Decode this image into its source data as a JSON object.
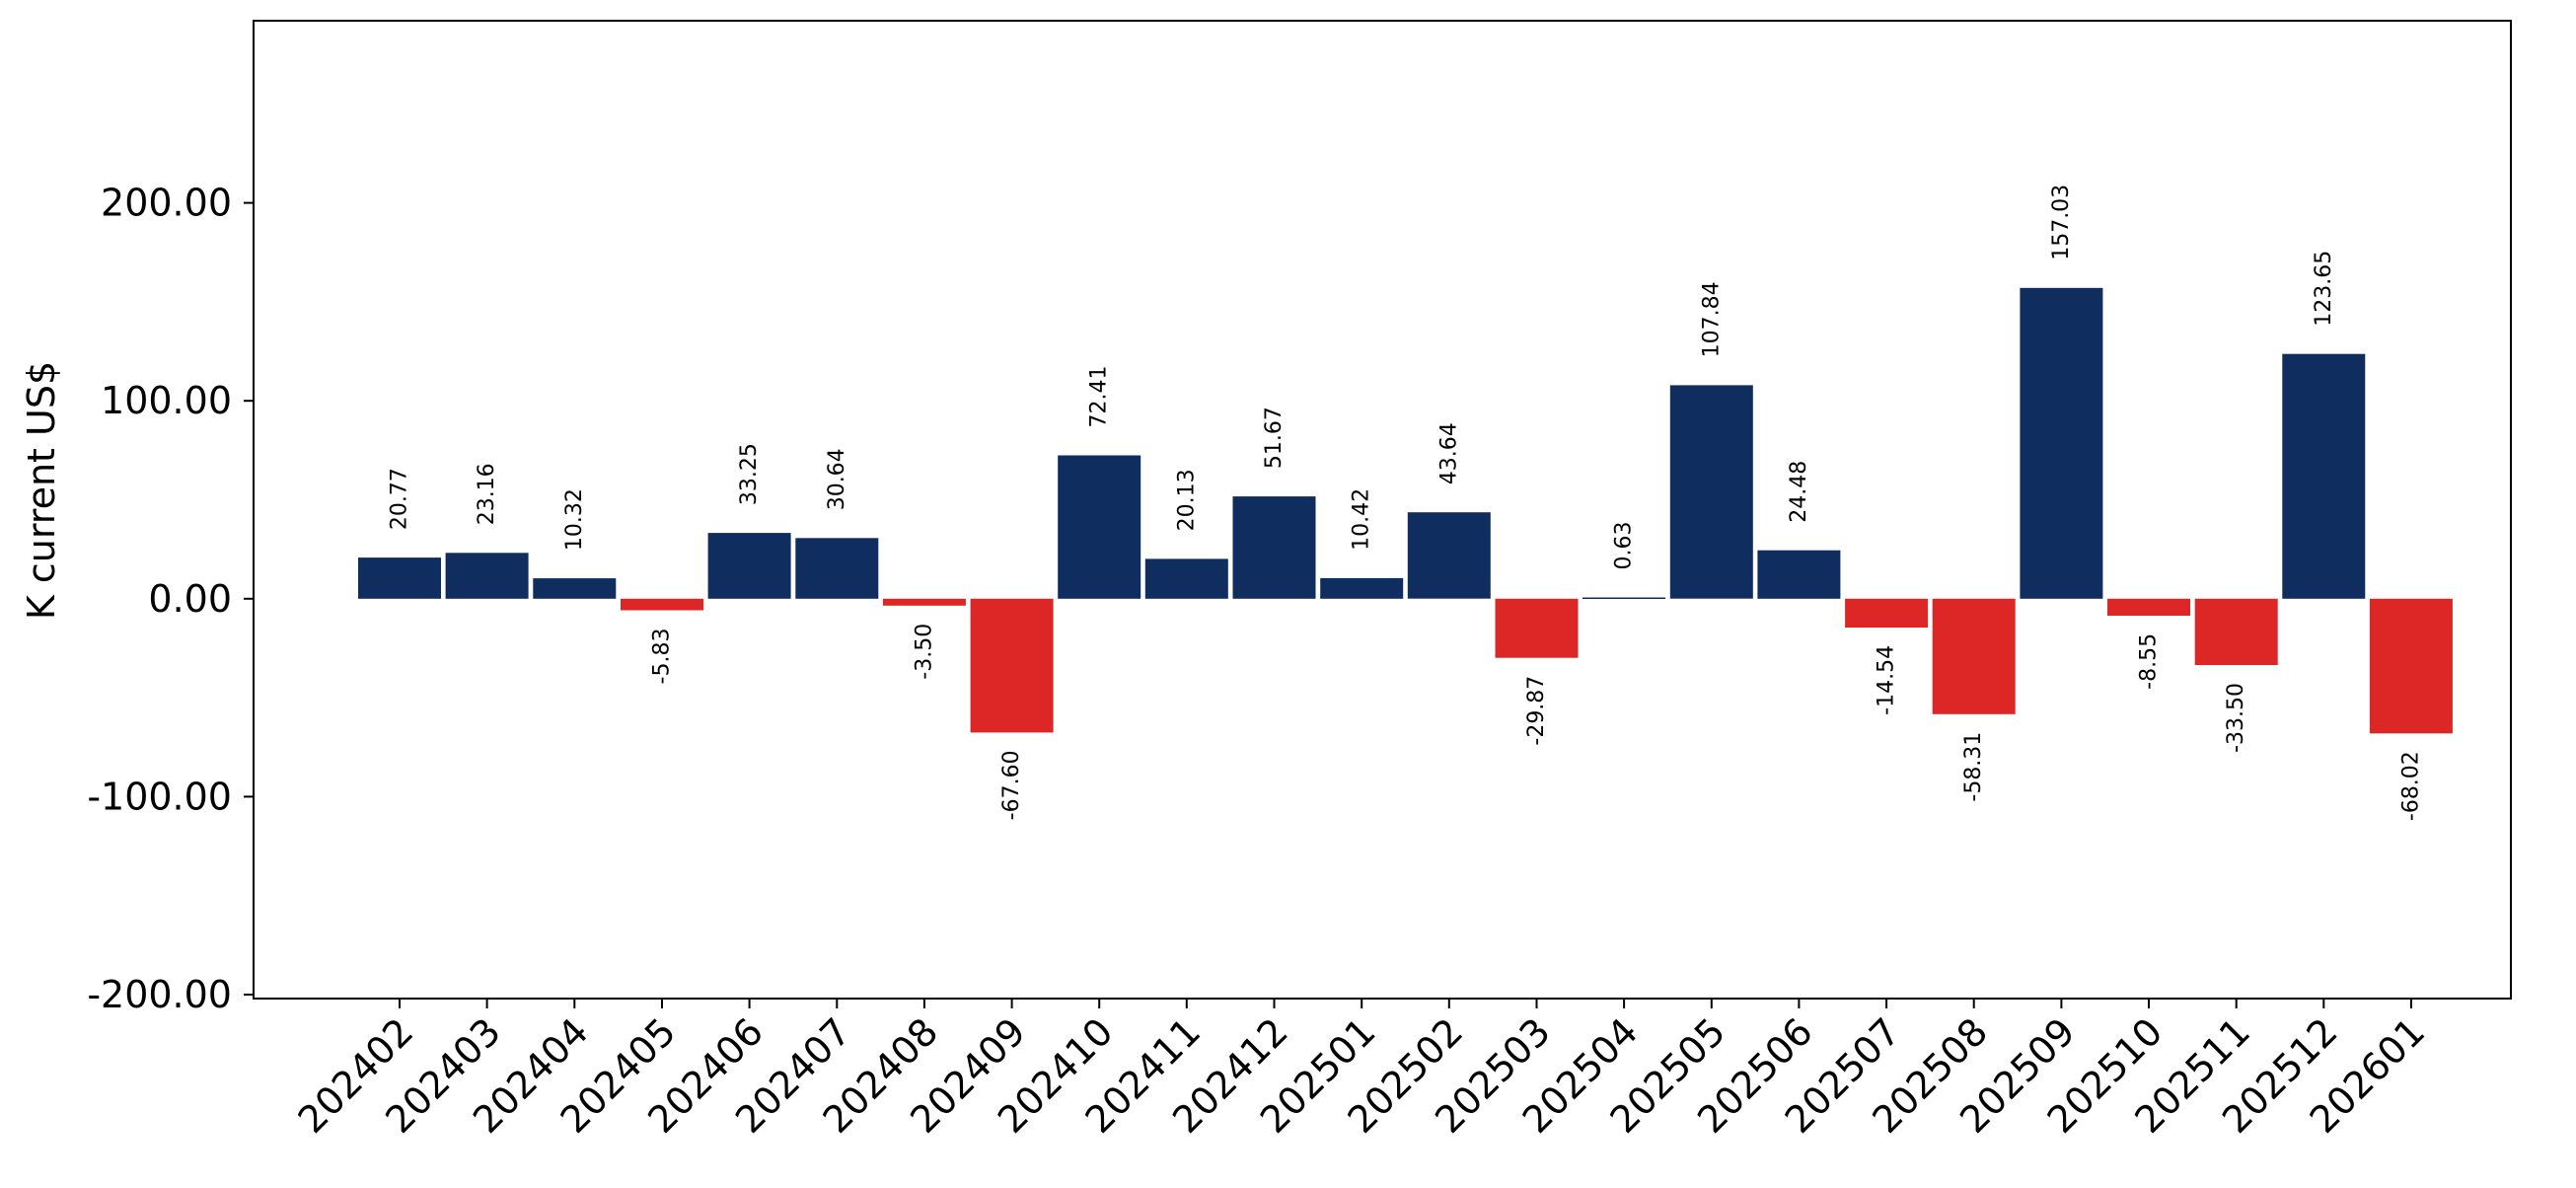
{
  "colors": {
    "positive": "#0f2d5e",
    "negative": "#dd2727",
    "axis": "#000000",
    "background": "#ffffff"
  },
  "chart_data": {
    "type": "bar",
    "ylabel": "K current US$",
    "xlabel": "",
    "title": "",
    "ylim": [
      -202,
      292
    ],
    "yticks": [
      -200,
      -100,
      0,
      100,
      200
    ],
    "ytick_labels": [
      "-200.00",
      "-100.00",
      "0.00",
      "100.00",
      "200.00"
    ],
    "grid": false,
    "legend": "none",
    "categories": [
      "202402",
      "202403",
      "202404",
      "202405",
      "202406",
      "202407",
      "202408",
      "202409",
      "202410",
      "202411",
      "202412",
      "202501",
      "202502",
      "202503",
      "202504",
      "202505",
      "202506",
      "202507",
      "202508",
      "202509",
      "202510",
      "202511",
      "202512",
      "202601"
    ],
    "values": [
      20.77,
      23.16,
      10.32,
      -5.83,
      33.25,
      30.64,
      -3.5,
      -67.6,
      72.41,
      20.13,
      51.67,
      10.42,
      43.64,
      -29.87,
      0.63,
      107.84,
      24.48,
      -14.54,
      -58.31,
      157.03,
      -8.55,
      -33.5,
      123.65,
      -68.02
    ],
    "value_labels": [
      "20.77",
      "23.16",
      "10.32",
      "-5.83",
      "33.25",
      "30.64",
      "-3.50",
      "-67.60",
      "72.41",
      "20.13",
      "51.67",
      "10.42",
      "43.64",
      "-29.87",
      "0.63",
      "107.84",
      "24.48",
      "-14.54",
      "-58.31",
      "157.03",
      "-8.55",
      "-33.50",
      "123.65",
      "-68.02"
    ]
  }
}
